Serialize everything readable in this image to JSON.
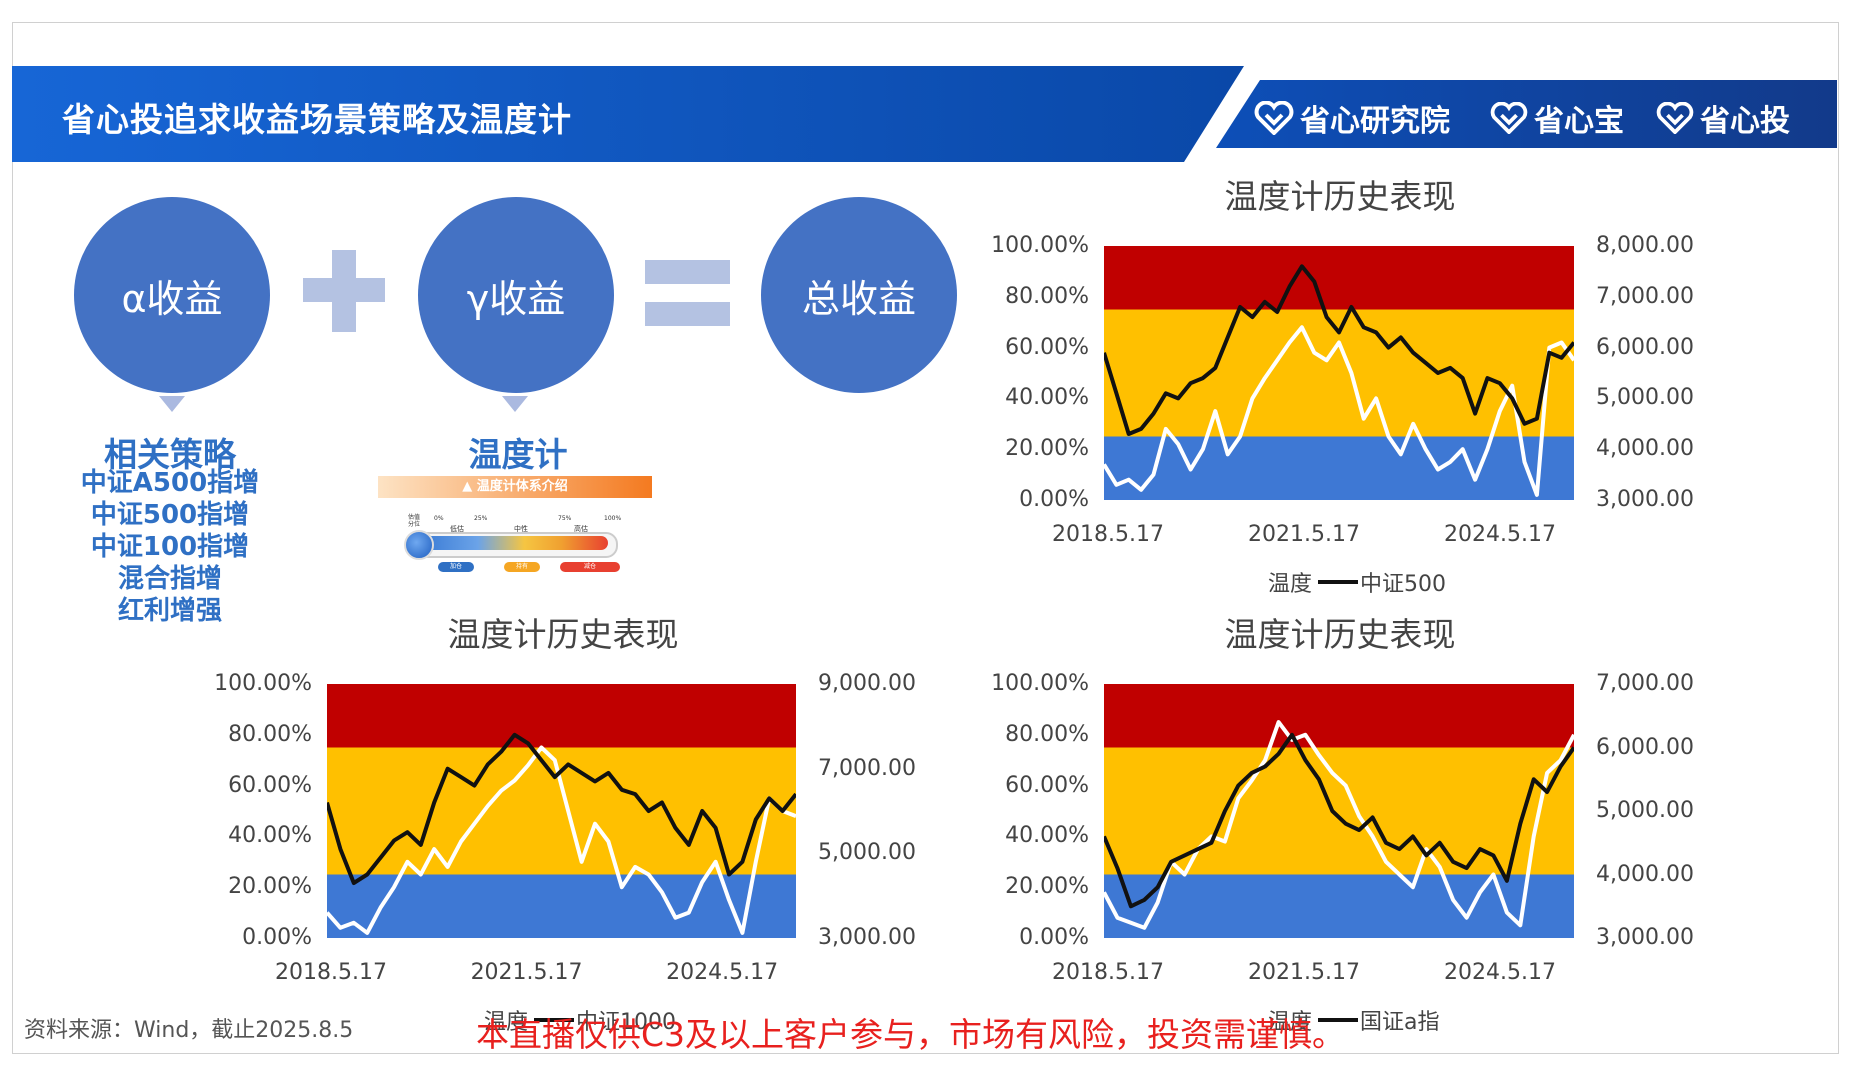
{
  "header": {
    "title": "省心投追求收益场景策略及温度计",
    "brands": [
      "省心研究院",
      "省心宝",
      "省心投"
    ]
  },
  "equation": {
    "alpha": "α收益",
    "gamma": "γ收益",
    "total": "总收益",
    "plus_icon": "plus-icon",
    "equals_icon": "equals-icon"
  },
  "strategies": {
    "title": "相关策略",
    "items": [
      "中证A500指增",
      "中证500指增",
      "中证100指增",
      "混合指增",
      "红利增强"
    ]
  },
  "thermometer": {
    "title": "温度计",
    "banner": "温度计体系介绍",
    "side_label": "估值分位",
    "scale": [
      "0%",
      "25%",
      "75%",
      "100%"
    ],
    "zones": [
      "低估",
      "中性",
      "高估"
    ],
    "actions": [
      "加仓",
      "持有",
      "减仓"
    ]
  },
  "chart_data": [
    {
      "type": "line",
      "title": "温度计历史表现",
      "x_ticks": [
        "2018.5.17",
        "2021.5.17",
        "2024.5.17"
      ],
      "y_left_ticks": [
        "100.00%",
        "80.00%",
        "60.00%",
        "40.00%",
        "20.00%",
        "0.00%"
      ],
      "y_right_ticks": [
        "8,000.00",
        "7,000.00",
        "6,000.00",
        "5,000.00",
        "4,000.00",
        "3,000.00"
      ],
      "ylim_left": [
        0,
        100
      ],
      "ylim_right": [
        3000,
        8000
      ],
      "legend": [
        "温度",
        "中证500"
      ],
      "legend_placement": "bottom",
      "bands": [
        {
          "from": 0,
          "to": 25,
          "color": "#3e78d4"
        },
        {
          "from": 25,
          "to": 75,
          "color": "#ffc000"
        },
        {
          "from": 75,
          "to": 100,
          "color": "#c00000"
        }
      ],
      "series": [
        {
          "name": "温度",
          "axis": "left",
          "color": "#ffffff",
          "values": [
            14,
            6,
            8,
            4,
            10,
            28,
            22,
            12,
            20,
            35,
            18,
            25,
            40,
            48,
            55,
            62,
            68,
            58,
            55,
            62,
            50,
            32,
            40,
            25,
            18,
            30,
            20,
            12,
            15,
            20,
            8,
            20,
            35,
            45,
            15,
            2,
            60,
            62,
            55
          ]
        },
        {
          "name": "中证500",
          "axis": "right",
          "color": "#111111",
          "values": [
            5900,
            5100,
            4300,
            4400,
            4700,
            5100,
            5000,
            5300,
            5400,
            5600,
            6200,
            6800,
            6600,
            6900,
            6700,
            7200,
            7600,
            7300,
            6600,
            6300,
            6800,
            6400,
            6300,
            6000,
            6200,
            5900,
            5700,
            5500,
            5600,
            5400,
            4700,
            5400,
            5300,
            5000,
            4500,
            4600,
            5900,
            5800,
            6100
          ]
        }
      ]
    },
    {
      "type": "line",
      "title": "温度计历史表现",
      "x_ticks": [
        "2018.5.17",
        "2021.5.17",
        "2024.5.17"
      ],
      "y_left_ticks": [
        "100.00%",
        "80.00%",
        "60.00%",
        "40.00%",
        "20.00%",
        "0.00%"
      ],
      "y_right_ticks": [
        "9,000.00",
        "7,000.00",
        "5,000.00",
        "3,000.00"
      ],
      "ylim_left": [
        0,
        100
      ],
      "ylim_right": [
        3000,
        9000
      ],
      "legend": [
        "温度",
        "中证1000"
      ],
      "legend_placement": "bottom",
      "bands": [
        {
          "from": 0,
          "to": 25,
          "color": "#3e78d4"
        },
        {
          "from": 25,
          "to": 75,
          "color": "#ffc000"
        },
        {
          "from": 75,
          "to": 100,
          "color": "#c00000"
        }
      ],
      "series": [
        {
          "name": "温度",
          "axis": "left",
          "color": "#ffffff",
          "values": [
            10,
            4,
            6,
            2,
            12,
            20,
            30,
            25,
            35,
            28,
            38,
            45,
            52,
            58,
            62,
            68,
            75,
            70,
            50,
            30,
            45,
            38,
            20,
            28,
            25,
            18,
            8,
            10,
            22,
            30,
            15,
            2,
            30,
            55,
            50,
            48
          ]
        },
        {
          "name": "中证1000",
          "axis": "right",
          "color": "#111111",
          "values": [
            6200,
            5100,
            4300,
            4500,
            4900,
            5300,
            5500,
            5200,
            6200,
            7000,
            6800,
            6600,
            7100,
            7400,
            7800,
            7600,
            7200,
            6800,
            7100,
            6900,
            6700,
            6900,
            6500,
            6400,
            6000,
            6200,
            5600,
            5200,
            6000,
            5600,
            4500,
            4800,
            5800,
            6300,
            6000,
            6400
          ]
        }
      ]
    },
    {
      "type": "line",
      "title": "温度计历史表现",
      "x_ticks": [
        "2018.5.17",
        "2021.5.17",
        "2024.5.17"
      ],
      "y_left_ticks": [
        "100.00%",
        "80.00%",
        "60.00%",
        "40.00%",
        "20.00%",
        "0.00%"
      ],
      "y_right_ticks": [
        "7,000.00",
        "6,000.00",
        "5,000.00",
        "4,000.00",
        "3,000.00"
      ],
      "ylim_left": [
        0,
        100
      ],
      "ylim_right": [
        3000,
        7000
      ],
      "legend": [
        "温度",
        "国证a指"
      ],
      "legend_placement": "bottom",
      "bands": [
        {
          "from": 0,
          "to": 25,
          "color": "#3e78d4"
        },
        {
          "from": 25,
          "to": 75,
          "color": "#ffc000"
        },
        {
          "from": 75,
          "to": 100,
          "color": "#c00000"
        }
      ],
      "series": [
        {
          "name": "温度",
          "axis": "left",
          "color": "#ffffff",
          "values": [
            18,
            8,
            6,
            4,
            14,
            30,
            25,
            35,
            40,
            38,
            55,
            62,
            70,
            85,
            78,
            80,
            72,
            65,
            60,
            48,
            40,
            30,
            25,
            20,
            35,
            28,
            15,
            8,
            18,
            25,
            10,
            5,
            40,
            65,
            70,
            80
          ]
        },
        {
          "name": "国证a指",
          "axis": "right",
          "color": "#111111",
          "values": [
            4600,
            4100,
            3500,
            3600,
            3800,
            4200,
            4300,
            4400,
            4500,
            5000,
            5400,
            5600,
            5700,
            5900,
            6200,
            5800,
            5500,
            5000,
            4800,
            4700,
            4900,
            4500,
            4400,
            4600,
            4300,
            4500,
            4200,
            4100,
            4400,
            4300,
            3900,
            4800,
            5500,
            5300,
            5700,
            6000
          ]
        }
      ]
    }
  ],
  "footer": {
    "source": "资料来源：Wind，截止2025.8.5",
    "disclaimer": "本直播仅供C3及以上客户参与，市场有风险，投资需谨慎。"
  }
}
